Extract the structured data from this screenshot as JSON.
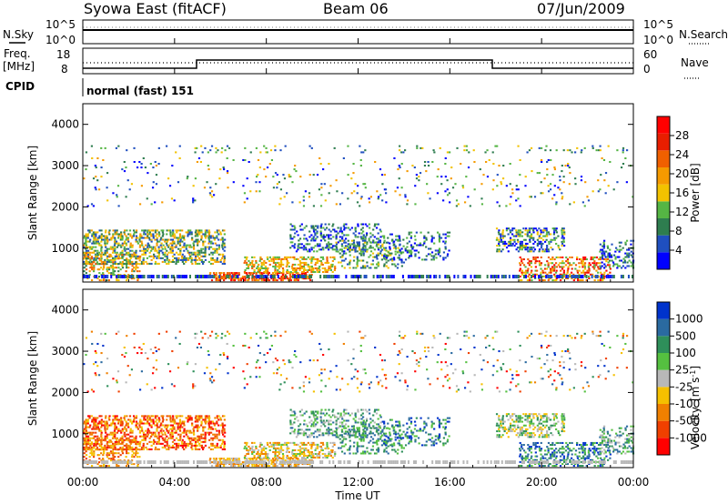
{
  "header": {
    "station": "Syowa East (fitACF)",
    "beam": "Beam 06",
    "date": "07/Jun/2009"
  },
  "strip": {
    "nsky_label": "N.Sky",
    "nsearch_label": "N.Search",
    "freq_label": "Freq.",
    "mhz_label": "[MHz]",
    "nave_label": "Nave",
    "cpid_label": "CPID",
    "cpid_text": "normal (fast) 151",
    "nsky_ticks": [
      "10^5",
      "10^0"
    ],
    "nsearch_ticks": [
      "10^5",
      "10^0"
    ],
    "freq_ticks": [
      "18",
      "8"
    ],
    "nave_ticks": [
      "60",
      "0"
    ]
  },
  "colors": {
    "power": [
      "#0000ff",
      "#1f4fbf",
      "#2e7d4f",
      "#55b544",
      "#f2c200",
      "#f59a00",
      "#f06000",
      "#e81e00",
      "#ff0000"
    ],
    "velocity": [
      "#ff0000",
      "#f04000",
      "#f08000",
      "#f5c000",
      "#b8b8b8",
      "#55c040",
      "#2e8f5a",
      "#2a6aa0",
      "#0033cc"
    ]
  },
  "chart_data": [
    {
      "type": "heatmap",
      "ylabel": "Slant Range [km]",
      "colorbar_label": "Power [dB]",
      "colorbar_ticks": [
        "28",
        "24",
        "20",
        "16",
        "12",
        "8",
        "4"
      ],
      "ylim": [
        180,
        4500
      ],
      "yticks": [
        "4000",
        "3000",
        "2000",
        "1000"
      ]
    },
    {
      "type": "heatmap",
      "ylabel": "Slant Range [km]",
      "colorbar_label": "Velocity",
      "colorbar_units": "[m s",
      "colorbar_units_sup": "-1",
      "colorbar_units_end": "]",
      "colorbar_ticks": [
        "1000",
        "500",
        "100",
        "25",
        "-25",
        "-100",
        "-500",
        "-1000"
      ],
      "ylim": [
        180,
        4500
      ],
      "yticks": [
        "4000",
        "3000",
        "2000",
        "1000"
      ]
    }
  ],
  "xaxis": {
    "label": "Time UT",
    "ticks": [
      "00:00",
      "04:00",
      "08:00",
      "12:00",
      "16:00",
      "20:00",
      "00:00"
    ]
  }
}
